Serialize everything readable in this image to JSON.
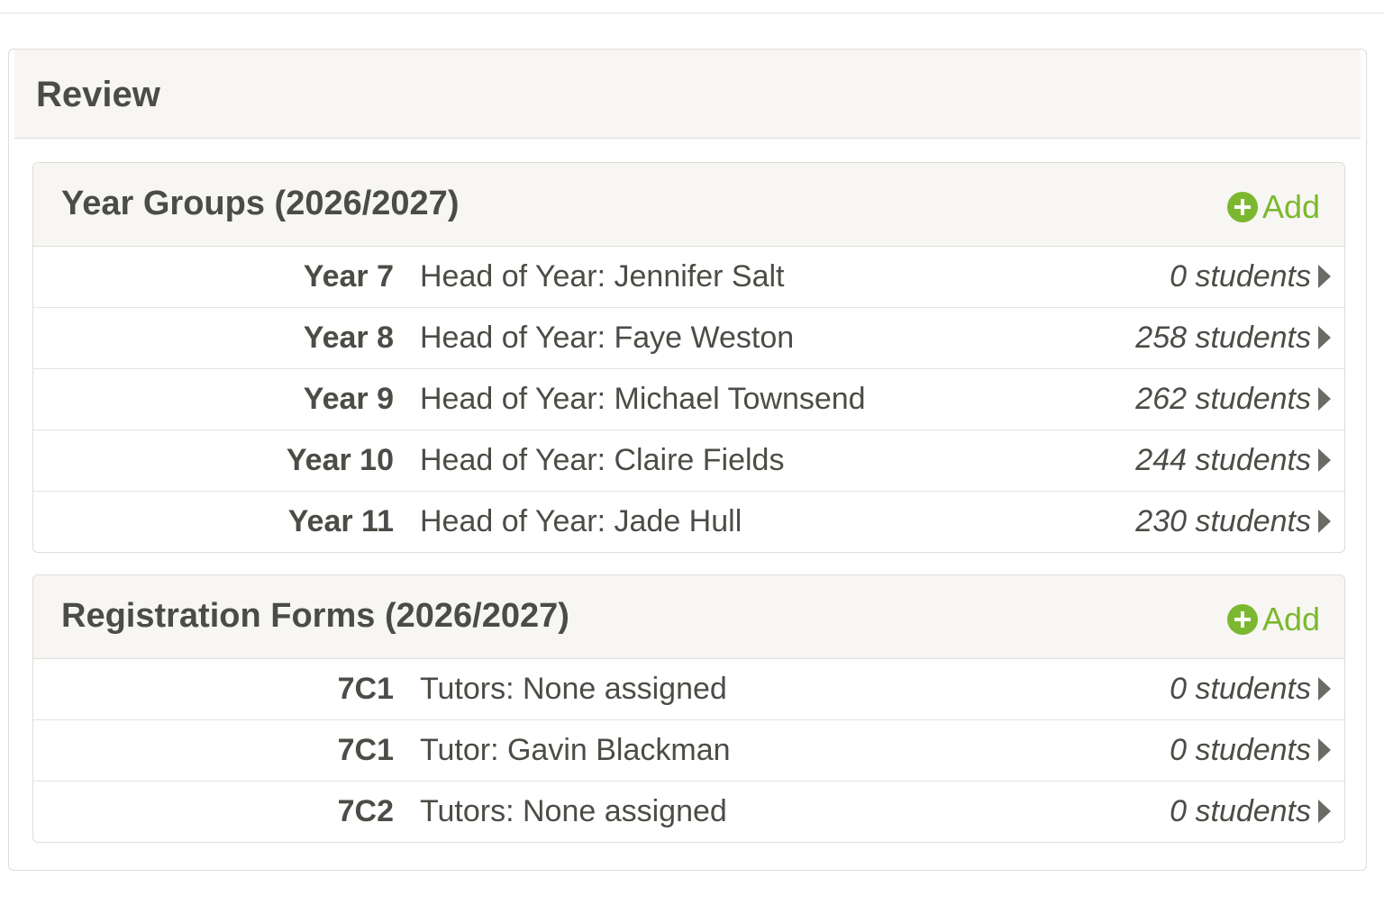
{
  "title": "Review",
  "sections": [
    {
      "title": "Year Groups (2026/2027)",
      "action": "Add",
      "rows": [
        {
          "name": "Year 7",
          "detail": "Head of Year: Jennifer Salt",
          "count": "0 students"
        },
        {
          "name": "Year 8",
          "detail": "Head of Year: Faye Weston",
          "count": "258 students"
        },
        {
          "name": "Year 9",
          "detail": "Head of Year: Michael Townsend",
          "count": "262 students"
        },
        {
          "name": "Year 10",
          "detail": "Head of Year: Claire Fields",
          "count": "244 students"
        },
        {
          "name": "Year 11",
          "detail": "Head of Year: Jade Hull",
          "count": "230 students"
        }
      ]
    },
    {
      "title": "Registration Forms (2026/2027)",
      "action": "Add",
      "rows": [
        {
          "name": "7C1",
          "detail": "Tutors: None assigned",
          "count": "0 students"
        },
        {
          "name": "7C1",
          "detail": "Tutor: Gavin Blackman",
          "count": "0 students"
        },
        {
          "name": "7C2",
          "detail": "Tutors: None assigned",
          "count": "0 students"
        }
      ]
    }
  ]
}
